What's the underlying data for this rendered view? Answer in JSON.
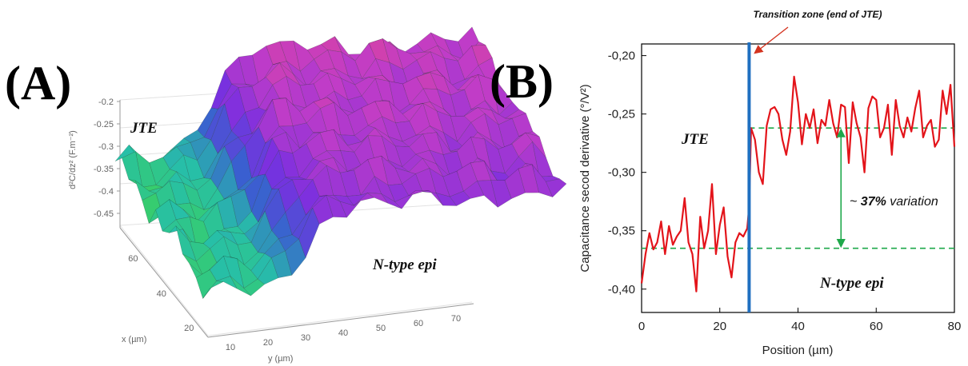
{
  "panel_a": {
    "label": "(A)",
    "z_axis_label": "d²C/dz² (F.m⁻²)",
    "z_ticks": [
      "-0.2",
      "-0.25",
      "-0.3",
      "-0.35",
      "-0.4",
      "-0.45"
    ],
    "x_axis_label": "x (µm)",
    "x_ticks": [
      "20",
      "40",
      "60"
    ],
    "y_axis_label": "y (µm)",
    "y_ticks": [
      "10",
      "20",
      "30",
      "40",
      "50",
      "60",
      "70"
    ],
    "region_jte": "JTE",
    "region_ntype": "N-type epi",
    "colors": [
      "#41d645",
      "#27bfa8",
      "#3a5fd0",
      "#7a2fe0",
      "#c03cc8",
      "#e8478a"
    ]
  },
  "panel_b": {
    "label": "(B)",
    "transition_note": "Transition zone (end of JTE)",
    "region_jte": "JTE",
    "region_ntype": "N-type epi",
    "variation_prefix": "~ ",
    "variation_percent": "37%",
    "variation_suffix": " variation",
    "colors": {
      "signal": "#e3141a",
      "transition": "#1f6fc0",
      "levels": "#1ea84a",
      "arrow": "#d4331f"
    }
  },
  "chart_data": [
    {
      "type": "surface",
      "zlabel": "d²C/dz² (F.m⁻²)",
      "xlabel": "x (µm)",
      "ylabel": "y (µm)",
      "zlim": [
        -0.45,
        -0.2
      ],
      "x_ticks": [
        20,
        40,
        60
      ],
      "y_ticks": [
        10,
        20,
        30,
        40,
        50,
        60,
        70
      ],
      "z_ticks": [
        -0.2,
        -0.25,
        -0.3,
        -0.35,
        -0.4,
        -0.45
      ],
      "annotations": [
        "JTE",
        "N-type epi"
      ]
    },
    {
      "type": "line",
      "xlabel": "Position (µm)",
      "ylabel": "Capacitance secod derivative (°/V²)",
      "xlim": [
        0,
        80
      ],
      "ylim": [
        -0.42,
        -0.19
      ],
      "x_ticks": [
        0,
        20,
        40,
        60,
        80
      ],
      "y_ticks": [
        -0.2,
        -0.25,
        -0.3,
        -0.35,
        -0.4
      ],
      "y_tick_labels": [
        "-0,20",
        "-0,25",
        "-0,30",
        "-0,35",
        "-0,40"
      ],
      "series": [
        {
          "x": [
            0,
            1,
            2,
            3,
            4,
            5,
            6,
            7,
            8,
            9,
            10,
            11,
            12,
            13,
            14,
            15,
            16,
            17,
            18,
            19,
            20,
            21,
            22,
            23,
            24,
            25,
            26,
            27,
            27.5,
            28,
            29,
            30,
            31,
            32,
            33,
            34,
            35,
            36,
            37,
            38,
            39,
            40,
            41,
            42,
            43,
            44,
            45,
            46,
            47,
            48,
            49,
            50,
            51,
            52,
            53,
            54,
            55,
            56,
            57,
            58,
            59,
            60,
            61,
            62,
            63,
            64,
            65,
            66,
            67,
            68,
            69,
            70,
            71,
            72,
            73,
            74,
            75,
            76,
            77,
            78,
            79,
            80
          ],
          "y": [
            -0.395,
            -0.37,
            -0.352,
            -0.366,
            -0.36,
            -0.342,
            -0.37,
            -0.346,
            -0.362,
            -0.355,
            -0.35,
            -0.322,
            -0.36,
            -0.37,
            -0.402,
            -0.338,
            -0.365,
            -0.35,
            -0.31,
            -0.37,
            -0.345,
            -0.33,
            -0.372,
            -0.39,
            -0.36,
            -0.352,
            -0.355,
            -0.348,
            -0.33,
            -0.262,
            -0.272,
            -0.3,
            -0.31,
            -0.26,
            -0.246,
            -0.244,
            -0.25,
            -0.272,
            -0.285,
            -0.265,
            -0.218,
            -0.24,
            -0.276,
            -0.25,
            -0.262,
            -0.246,
            -0.275,
            -0.255,
            -0.26,
            -0.238,
            -0.258,
            -0.27,
            -0.242,
            -0.244,
            -0.292,
            -0.24,
            -0.258,
            -0.27,
            -0.3,
            -0.245,
            -0.235,
            -0.238,
            -0.27,
            -0.262,
            -0.242,
            -0.285,
            -0.238,
            -0.26,
            -0.27,
            -0.253,
            -0.265,
            -0.245,
            -0.23,
            -0.27,
            -0.26,
            -0.255,
            -0.278,
            -0.272,
            -0.23,
            -0.25,
            -0.225,
            -0.278
          ]
        }
      ],
      "transition_x": 27.5,
      "reference_levels": [
        -0.262,
        -0.365
      ],
      "annotations": [
        "Transition zone (end of JTE)",
        "JTE",
        "N-type epi",
        "~ 37% variation"
      ]
    }
  ]
}
